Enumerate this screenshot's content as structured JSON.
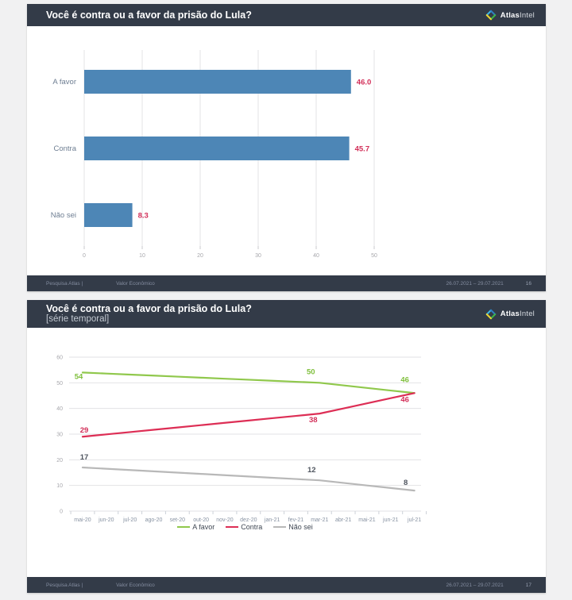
{
  "brand": {
    "bold": "Atlas",
    "light": "Intel"
  },
  "slide1": {
    "title": "Você é contra ou a favor da prisão do Lula?",
    "footer": {
      "source": "Pesquisa Atlas  |",
      "client": "Valor Econômico",
      "dates": "26.07.2021 – 29.07.2021",
      "page": "16"
    }
  },
  "slide2": {
    "title": "Você é contra ou a favor da prisão do Lula?",
    "subtitle": "[série temporal]",
    "footer": {
      "source": "Pesquisa Atlas  |",
      "client": "Valor Econômico",
      "dates": "26.07.2021 – 29.07.2021",
      "page": "17"
    }
  },
  "chart_data": [
    {
      "type": "bar",
      "orientation": "horizontal",
      "title": "Você é contra ou a favor da prisão do Lula?",
      "categories": [
        "A favor",
        "Contra",
        "Não sei"
      ],
      "values": [
        46.0,
        45.7,
        8.3
      ],
      "value_labels": [
        "46.0",
        "45.7",
        "8.3"
      ],
      "xlim": [
        0,
        50
      ],
      "xticks": [
        0,
        10,
        20,
        30,
        40,
        50
      ],
      "grid": "vertical",
      "bar_color": "#4d86b6",
      "value_color": "#d22e58"
    },
    {
      "type": "line",
      "title": "Você é contra ou a favor da prisão do Lula? [série temporal]",
      "categories": [
        "mai-20",
        "jun-20",
        "jul-20",
        "ago-20",
        "set-20",
        "out-20",
        "nov-20",
        "dez-20",
        "jan-21",
        "fev-21",
        "mar-21",
        "abr-21",
        "mai-21",
        "jun-21",
        "jul-21"
      ],
      "ylim": [
        0,
        60
      ],
      "yticks": [
        0,
        10,
        20,
        30,
        40,
        50,
        60
      ],
      "grid": "horizontal",
      "legend_position": "bottom",
      "series": [
        {
          "name": "A favor",
          "color": "#90c84c",
          "label_color": "#7fbf3c",
          "values": [
            54,
            53.6,
            53.2,
            52.8,
            52.4,
            52,
            51.6,
            51.2,
            50.8,
            50.4,
            50,
            49,
            48,
            47,
            46
          ]
        },
        {
          "name": "Contra",
          "color": "#dd2e55",
          "label_color": "#d22e58",
          "values": [
            29,
            29.9,
            30.8,
            31.7,
            32.6,
            33.5,
            34.4,
            35.3,
            36.2,
            37.1,
            38,
            40,
            42,
            44,
            46
          ]
        },
        {
          "name": "Não sei",
          "color": "#b8b8b8",
          "label_color": "#4f555f",
          "values": [
            17,
            16.5,
            16,
            15.5,
            15,
            14.5,
            14,
            13.5,
            13,
            12.5,
            12,
            11,
            10,
            9,
            8
          ]
        }
      ],
      "labeled_points": [
        {
          "series": 0,
          "index": 0,
          "value": 54,
          "label": "54",
          "ox": -5,
          "oy": 8
        },
        {
          "series": 0,
          "index": 10,
          "value": 50,
          "label": "50",
          "ox": -11,
          "oy": -11
        },
        {
          "series": 0,
          "index": 14,
          "value": 46,
          "label": "46",
          "ox": -12,
          "oy": -14
        },
        {
          "series": 1,
          "index": 0,
          "value": 29,
          "label": "29",
          "ox": 2,
          "oy": -5
        },
        {
          "series": 1,
          "index": 10,
          "value": 38,
          "label": "38",
          "ox": -8,
          "oy": 11
        },
        {
          "series": 1,
          "index": 14,
          "value": 46,
          "label": "46",
          "ox": -12,
          "oy": 11
        },
        {
          "series": 2,
          "index": 0,
          "value": 17,
          "label": "17",
          "ox": 2,
          "oy": -10
        },
        {
          "series": 2,
          "index": 10,
          "value": 12,
          "label": "12",
          "ox": -10,
          "oy": -10
        },
        {
          "series": 2,
          "index": 14,
          "value": 8,
          "label": "8",
          "ox": -11,
          "oy": -7
        }
      ]
    }
  ]
}
